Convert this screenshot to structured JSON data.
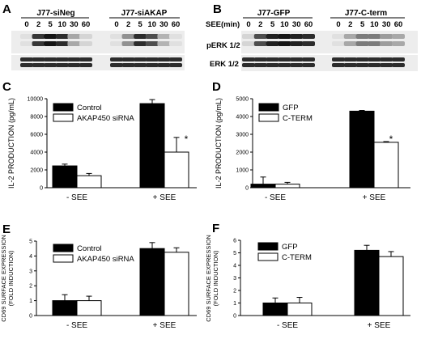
{
  "panels": {
    "A": {
      "letter": "A",
      "groups": [
        {
          "name": "J77-siNeg",
          "timepoints": [
            "0",
            "2",
            "5",
            "10",
            "30",
            "60"
          ]
        },
        {
          "name": "J77-siAKAP",
          "timepoints": [
            "0",
            "2",
            "5",
            "10",
            "30",
            "60"
          ]
        }
      ],
      "pERK_intensity": [
        [
          0.05,
          0.8,
          0.95,
          0.85,
          0.3,
          0.1
        ],
        [
          0.05,
          0.4,
          0.85,
          0.7,
          0.25,
          0.05
        ]
      ],
      "ERK_intensity": [
        [
          0.85,
          0.85,
          0.85,
          0.85,
          0.85,
          0.85
        ],
        [
          0.85,
          0.85,
          0.85,
          0.85,
          0.85,
          0.85
        ]
      ]
    },
    "B": {
      "letter": "B",
      "axis_label": "SEE(min)",
      "groups": [
        {
          "name": "J77-GFP",
          "timepoints": [
            "0",
            "2",
            "5",
            "10",
            "30",
            "60"
          ]
        },
        {
          "name": "J77-C-term",
          "timepoints": [
            "0",
            "2",
            "5",
            "10",
            "30",
            "60"
          ]
        }
      ],
      "row_labels": [
        "pERK 1/2",
        "ERK 1/2"
      ],
      "pERK_intensity": [
        [
          0.1,
          0.7,
          0.9,
          0.95,
          0.9,
          0.85
        ],
        [
          0.05,
          0.3,
          0.5,
          0.5,
          0.35,
          0.3
        ]
      ],
      "ERK_intensity": [
        [
          0.85,
          0.85,
          0.85,
          0.85,
          0.85,
          0.85
        ],
        [
          0.85,
          0.85,
          0.85,
          0.85,
          0.85,
          0.85
        ]
      ]
    }
  },
  "chart_data": [
    {
      "panel": "C",
      "type": "bar",
      "categories": [
        "- SEE",
        "+ SEE"
      ],
      "series": [
        {
          "name": "Control",
          "values": [
            2450,
            9450
          ],
          "errors": [
            200,
            450
          ],
          "color": "#000000"
        },
        {
          "name": "AKAP450 siRNA",
          "values": [
            1350,
            4000
          ],
          "errors": [
            250,
            1650
          ],
          "color": "#ffffff"
        }
      ],
      "ylabel": "IL-2 PRODUCTION (pg/mL)",
      "ylim": [
        0,
        10000
      ],
      "yticks": [
        "0",
        "2000",
        "4000",
        "6000",
        "8000",
        "10000"
      ],
      "annotation": "*",
      "legend_position": "top-left"
    },
    {
      "panel": "D",
      "type": "bar",
      "categories": [
        "- SEE",
        "+ SEE"
      ],
      "series": [
        {
          "name": "GFP",
          "values": [
            200,
            4300
          ],
          "errors": [
            400,
            40
          ],
          "color": "#000000"
        },
        {
          "name": "C-TERM",
          "values": [
            200,
            2550
          ],
          "errors": [
            100,
            40
          ],
          "color": "#ffffff"
        }
      ],
      "ylabel": "IL-2 PRODUCTION (pg/mL)",
      "ylim": [
        0,
        5000
      ],
      "yticks": [
        "0",
        "1000",
        "2000",
        "3000",
        "4000",
        "5000"
      ],
      "annotation": "*",
      "legend_position": "top-left"
    },
    {
      "panel": "E",
      "type": "bar",
      "categories": [
        "- SEE",
        "+ SEE"
      ],
      "series": [
        {
          "name": "Control",
          "values": [
            1.0,
            4.5
          ],
          "errors": [
            0.4,
            0.4
          ],
          "color": "#000000"
        },
        {
          "name": "AKAP450 siRNA",
          "values": [
            1.0,
            4.25
          ],
          "errors": [
            0.3,
            0.3
          ],
          "color": "#ffffff"
        }
      ],
      "ylabel": "CD69 SURFACE EXPRESSION (FOLD INDUCTION)",
      "ylim": [
        0,
        5
      ],
      "yticks": [
        "0",
        "1",
        "2",
        "3",
        "4",
        "5"
      ],
      "legend_position": "top-left"
    },
    {
      "panel": "F",
      "type": "bar",
      "categories": [
        "- SEE",
        "+ SEE"
      ],
      "series": [
        {
          "name": "GFP",
          "values": [
            1.0,
            5.2
          ],
          "errors": [
            0.4,
            0.4
          ],
          "color": "#000000"
        },
        {
          "name": "C-TERM",
          "values": [
            1.0,
            4.7
          ],
          "errors": [
            0.45,
            0.4
          ],
          "color": "#ffffff"
        }
      ],
      "ylabel": "CD69 SURFACE EXPRESSION (FOLD INDUCTION)",
      "ylim": [
        0,
        6
      ],
      "yticks": [
        "0",
        "1",
        "2",
        "3",
        "4",
        "5",
        "6"
      ],
      "legend_position": "top-left"
    }
  ]
}
